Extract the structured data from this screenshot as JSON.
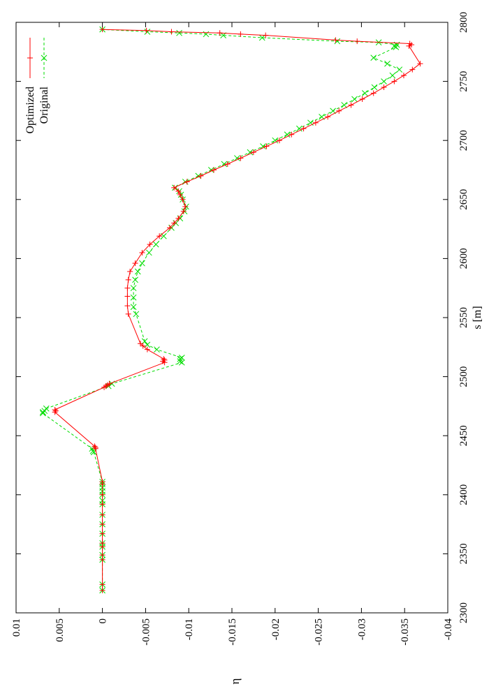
{
  "chart_data": {
    "type": "line",
    "orientation": "rotated-90",
    "xlabel": "s [m]",
    "ylabel": "η",
    "xlim": [
      2300,
      2800
    ],
    "ylim": [
      -0.04,
      0.01
    ],
    "x_ticks": [
      "2300",
      "2350",
      "2400",
      "2450",
      "2500",
      "2550",
      "2600",
      "2650",
      "2700",
      "2750",
      "2800"
    ],
    "y_ticks": [
      "0.01",
      "0.005",
      "0",
      "-0.005",
      "-0.01",
      "-0.015",
      "-0.02",
      "-0.025",
      "-0.03",
      "-0.035",
      "-0.04"
    ],
    "grid": false,
    "legend_position": "top-right",
    "series": [
      {
        "name": "Optimized",
        "color": "#ff0000",
        "line_style": "solid",
        "marker": "plus",
        "points": [
          [
            2319,
            0.0
          ],
          [
            2324,
            0.0
          ],
          [
            2345,
            0.0
          ],
          [
            2349,
            0.0
          ],
          [
            2356,
            0.0
          ],
          [
            2359,
            0.0
          ],
          [
            2367,
            0.0
          ],
          [
            2375,
            0.0
          ],
          [
            2383,
            0.0
          ],
          [
            2392,
            0.0
          ],
          [
            2400,
            0.0
          ],
          [
            2409,
            0.0
          ],
          [
            2411,
            0.0
          ],
          [
            2439,
            0.0008
          ],
          [
            2440,
            0.0008
          ],
          [
            2441,
            0.0009
          ],
          [
            2470,
            0.0055
          ],
          [
            2471,
            0.0054
          ],
          [
            2472,
            0.0055
          ],
          [
            2491,
            -0.0002
          ],
          [
            2492,
            -0.0004
          ],
          [
            2493,
            -0.0006
          ],
          [
            2494,
            -0.0008
          ],
          [
            2512,
            -0.0072
          ],
          [
            2513,
            -0.007
          ],
          [
            2514,
            -0.0072
          ],
          [
            2515,
            -0.0071
          ],
          [
            2523,
            -0.0052
          ],
          [
            2526,
            -0.0047
          ],
          [
            2528,
            -0.0044
          ],
          [
            2553,
            -0.003
          ],
          [
            2560,
            -0.0029
          ],
          [
            2568,
            -0.0029
          ],
          [
            2575,
            -0.0029
          ],
          [
            2582,
            -0.003
          ],
          [
            2589,
            -0.0032
          ],
          [
            2596,
            -0.0038
          ],
          [
            2605,
            -0.0046
          ],
          [
            2612,
            -0.0055
          ],
          [
            2619,
            -0.0066
          ],
          [
            2626,
            -0.0078
          ],
          [
            2630,
            -0.0083
          ],
          [
            2634,
            -0.0088
          ],
          [
            2640,
            -0.0094
          ],
          [
            2644,
            -0.0096
          ],
          [
            2650,
            -0.0093
          ],
          [
            2654,
            -0.009
          ],
          [
            2657,
            -0.0088
          ],
          [
            2660,
            -0.0083
          ],
          [
            2665,
            -0.0098
          ],
          [
            2670,
            -0.0114
          ],
          [
            2675,
            -0.0129
          ],
          [
            2680,
            -0.0145
          ],
          [
            2685,
            -0.016
          ],
          [
            2690,
            -0.0175
          ],
          [
            2695,
            -0.019
          ],
          [
            2700,
            -0.0205
          ],
          [
            2705,
            -0.0219
          ],
          [
            2710,
            -0.0233
          ],
          [
            2715,
            -0.0247
          ],
          [
            2720,
            -0.0261
          ],
          [
            2725,
            -0.0274
          ],
          [
            2730,
            -0.0288
          ],
          [
            2735,
            -0.0301
          ],
          [
            2740,
            -0.0314
          ],
          [
            2745,
            -0.0326
          ],
          [
            2750,
            -0.0338
          ],
          [
            2755,
            -0.0349
          ],
          [
            2760,
            -0.0359
          ],
          [
            2765,
            -0.0368
          ],
          [
            2780,
            -0.0355
          ],
          [
            2781,
            -0.0358
          ],
          [
            2782,
            -0.0356
          ],
          [
            2784,
            -0.0295
          ],
          [
            2785,
            -0.027
          ],
          [
            2789,
            -0.0189
          ],
          [
            2790,
            -0.016
          ],
          [
            2791,
            -0.0136
          ],
          [
            2792,
            -0.008
          ],
          [
            2793,
            -0.0051
          ],
          [
            2794,
            0.0
          ]
        ]
      },
      {
        "name": "Original",
        "color": "#00dd00",
        "line_style": "dashed",
        "marker": "x",
        "points": [
          [
            2319,
            0.0
          ],
          [
            2324,
            0.0
          ],
          [
            2345,
            0.0
          ],
          [
            2349,
            0.0
          ],
          [
            2356,
            0.0
          ],
          [
            2359,
            0.0
          ],
          [
            2367,
            0.0
          ],
          [
            2375,
            0.0
          ],
          [
            2383,
            0.0
          ],
          [
            2392,
            0.0
          ],
          [
            2395,
            0.0
          ],
          [
            2400,
            0.0
          ],
          [
            2403,
            0.0
          ],
          [
            2406,
            0.0
          ],
          [
            2409,
            0.0
          ],
          [
            2411,
            0.0
          ],
          [
            2436,
            0.001
          ],
          [
            2437,
            0.0011
          ],
          [
            2439,
            0.0012
          ],
          [
            2469,
            0.0069
          ],
          [
            2470,
            0.0069
          ],
          [
            2471,
            0.0067
          ],
          [
            2473,
            0.0065
          ],
          [
            2492,
            -0.0007
          ],
          [
            2494,
            -0.0011
          ],
          [
            2512,
            -0.0092
          ],
          [
            2513,
            -0.009
          ],
          [
            2515,
            -0.009
          ],
          [
            2516,
            -0.0092
          ],
          [
            2523,
            -0.0063
          ],
          [
            2527,
            -0.0052
          ],
          [
            2530,
            -0.0049
          ],
          [
            2553,
            -0.0039
          ],
          [
            2559,
            -0.0036
          ],
          [
            2567,
            -0.0036
          ],
          [
            2575,
            -0.0036
          ],
          [
            2582,
            -0.0038
          ],
          [
            2589,
            -0.0041
          ],
          [
            2596,
            -0.0046
          ],
          [
            2605,
            -0.0054
          ],
          [
            2612,
            -0.0062
          ],
          [
            2619,
            -0.0071
          ],
          [
            2626,
            -0.008
          ],
          [
            2630,
            -0.0085
          ],
          [
            2634,
            -0.009
          ],
          [
            2640,
            -0.0095
          ],
          [
            2644,
            -0.0097
          ],
          [
            2650,
            -0.0093
          ],
          [
            2654,
            -0.0091
          ],
          [
            2657,
            -0.0089
          ],
          [
            2660,
            -0.0084
          ],
          [
            2665,
            -0.0096
          ],
          [
            2670,
            -0.0111
          ],
          [
            2675,
            -0.0126
          ],
          [
            2680,
            -0.0141
          ],
          [
            2685,
            -0.0156
          ],
          [
            2690,
            -0.0171
          ],
          [
            2695,
            -0.0186
          ],
          [
            2700,
            -0.02
          ],
          [
            2705,
            -0.0214
          ],
          [
            2710,
            -0.0228
          ],
          [
            2715,
            -0.0241
          ],
          [
            2720,
            -0.0254
          ],
          [
            2725,
            -0.0267
          ],
          [
            2730,
            -0.028
          ],
          [
            2735,
            -0.0292
          ],
          [
            2740,
            -0.0304
          ],
          [
            2745,
            -0.0315
          ],
          [
            2750,
            -0.0326
          ],
          [
            2755,
            -0.0336
          ],
          [
            2760,
            -0.0344
          ],
          [
            2765,
            -0.033
          ],
          [
            2770,
            -0.0314
          ],
          [
            2779,
            -0.034
          ],
          [
            2780,
            -0.0338
          ],
          [
            2781,
            -0.0341
          ],
          [
            2783,
            -0.032
          ],
          [
            2784,
            -0.0272
          ],
          [
            2787,
            -0.0185
          ],
          [
            2789,
            -0.014
          ],
          [
            2790,
            -0.012
          ],
          [
            2791,
            -0.0089
          ],
          [
            2792,
            -0.0052
          ],
          [
            2794,
            0.0
          ]
        ]
      }
    ]
  }
}
